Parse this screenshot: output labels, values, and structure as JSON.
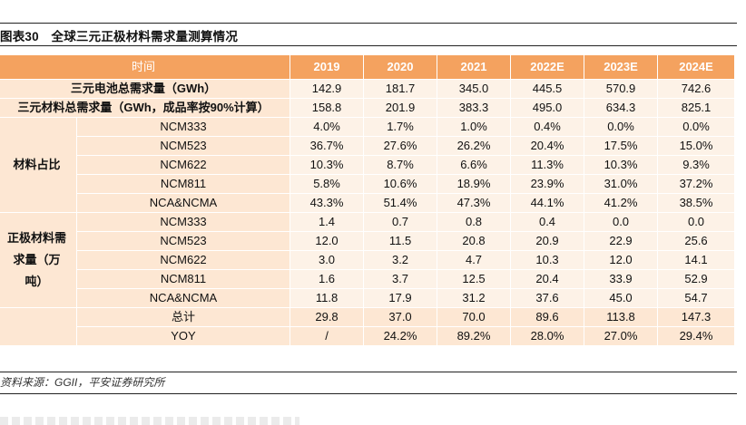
{
  "title": "图表30　全球三元正极材料需求量测算情况",
  "header": {
    "label": "时间",
    "years": [
      "2019",
      "2020",
      "2021",
      "2022E",
      "2023E",
      "2024E"
    ]
  },
  "rows_top": [
    {
      "label": "三元电池总需求量（GWh）",
      "values": [
        "142.9",
        "181.7",
        "345.0",
        "445.5",
        "570.9",
        "742.6"
      ]
    },
    {
      "label": "三元材料总需求量（GWh，成品率按90%计算）",
      "values": [
        "158.8",
        "201.9",
        "383.3",
        "495.0",
        "634.3",
        "825.1"
      ]
    }
  ],
  "share_group": {
    "label": "材料占比",
    "rows": [
      {
        "label": "NCM333",
        "values": [
          "4.0%",
          "1.7%",
          "1.0%",
          "0.4%",
          "0.0%",
          "0.0%"
        ]
      },
      {
        "label": "NCM523",
        "values": [
          "36.7%",
          "27.6%",
          "26.2%",
          "20.4%",
          "17.5%",
          "15.0%"
        ]
      },
      {
        "label": "NCM622",
        "values": [
          "10.3%",
          "8.7%",
          "6.6%",
          "11.3%",
          "10.3%",
          "9.3%"
        ]
      },
      {
        "label": "NCM811",
        "values": [
          "5.8%",
          "10.6%",
          "18.9%",
          "23.9%",
          "31.0%",
          "37.2%"
        ]
      },
      {
        "label": "NCA&NCMA",
        "values": [
          "43.3%",
          "51.4%",
          "47.3%",
          "44.1%",
          "41.2%",
          "38.5%"
        ]
      }
    ]
  },
  "demand_group": {
    "label_lines": [
      "正极材料需",
      "求量（万",
      "吨）"
    ],
    "rows": [
      {
        "label": "NCM333",
        "values": [
          "1.4",
          "0.7",
          "0.8",
          "0.4",
          "0.0",
          "0.0"
        ]
      },
      {
        "label": "NCM523",
        "values": [
          "12.0",
          "11.5",
          "20.8",
          "20.9",
          "22.9",
          "25.6"
        ]
      },
      {
        "label": "NCM622",
        "values": [
          "3.0",
          "3.2",
          "4.7",
          "10.3",
          "12.0",
          "14.1"
        ]
      },
      {
        "label": "NCM811",
        "values": [
          "1.6",
          "3.7",
          "12.5",
          "20.4",
          "33.9",
          "52.9"
        ]
      },
      {
        "label": "NCA&NCMA",
        "values": [
          "11.8",
          "17.9",
          "31.2",
          "37.6",
          "45.0",
          "54.7"
        ]
      },
      {
        "label": "总计",
        "values": [
          "29.8",
          "37.0",
          "70.0",
          "89.6",
          "113.8",
          "147.3"
        ]
      },
      {
        "label": "YOY",
        "values": [
          "/",
          "24.2%",
          "89.2%",
          "28.0%",
          "27.0%",
          "29.4%"
        ]
      }
    ]
  },
  "source": "资料来源：GGII，平安证券研究所"
}
